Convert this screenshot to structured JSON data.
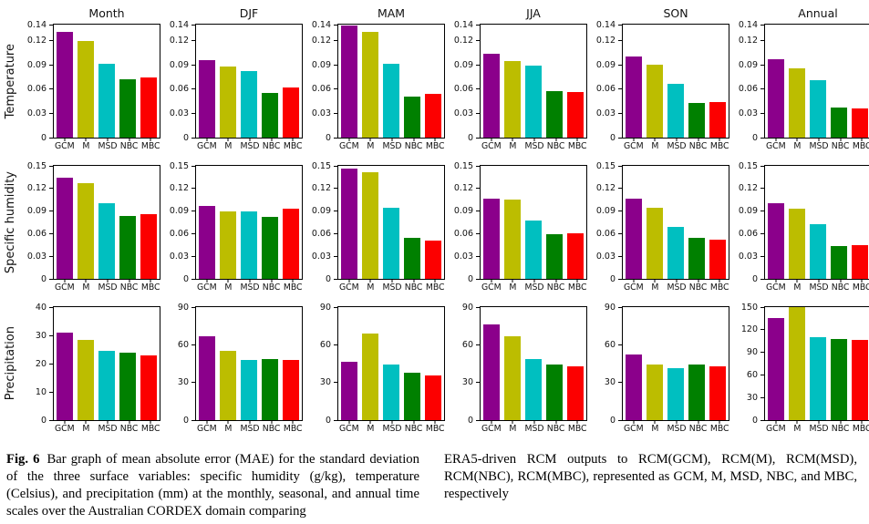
{
  "figure_caption": {
    "label": "Fig. 6",
    "left_text": "Bar graph of mean absolute error (MAE) for the standard deviation of the three surface variables: specific humidity (g/kg), temperature (Celsius), and precipitation (mm) at the monthly, seasonal, and annual time scales over the Australian CORDEX domain comparing",
    "right_text": "ERA5-driven RCM outputs to RCM(GCM), RCM(M), RCM(MSD), RCM(NBC), RCM(MBC), represented as GCM, M, MSD, NBC, and MBC, respectively"
  },
  "categories": [
    "GCM",
    "M",
    "MSD",
    "NBC",
    "MBC"
  ],
  "bar_colors": {
    "GCM": "#8b008b",
    "M": "#bcbd00",
    "MSD": "#00bfc0",
    "NBC": "#008000",
    "MBC": "#fc0000"
  },
  "row_labels": [
    "Temperature",
    "Specific humidity",
    "Precipitation"
  ],
  "col_titles": [
    "Month",
    "DJF",
    "MAM",
    "JJA",
    "SON",
    "Annual"
  ],
  "chart_data": [
    {
      "type": "bar",
      "title": "Month",
      "ylabel": "Temperature",
      "categories": [
        "GCM",
        "M",
        "MSD",
        "NBC",
        "MBC"
      ],
      "values": [
        0.131,
        0.12,
        0.091,
        0.072,
        0.075
      ],
      "ylim": [
        0,
        0.14
      ],
      "yticks": [
        0,
        0.03,
        0.06,
        0.09,
        0.12,
        0.14
      ],
      "xlabel": "",
      "grid": false
    },
    {
      "type": "bar",
      "title": "DJF",
      "ylabel": "Temperature",
      "categories": [
        "GCM",
        "M",
        "MSD",
        "NBC",
        "MBC"
      ],
      "values": [
        0.096,
        0.088,
        0.082,
        0.055,
        0.062
      ],
      "ylim": [
        0,
        0.14
      ],
      "yticks": [
        0,
        0.03,
        0.06,
        0.09,
        0.12,
        0.14
      ],
      "xlabel": "",
      "grid": false
    },
    {
      "type": "bar",
      "title": "MAM",
      "ylabel": "Temperature",
      "categories": [
        "GCM",
        "M",
        "MSD",
        "NBC",
        "MBC"
      ],
      "values": [
        0.139,
        0.131,
        0.091,
        0.051,
        0.054
      ],
      "ylim": [
        0,
        0.14
      ],
      "yticks": [
        0,
        0.03,
        0.06,
        0.09,
        0.12,
        0.14
      ],
      "xlabel": "",
      "grid": false
    },
    {
      "type": "bar",
      "title": "JJA",
      "ylabel": "Temperature",
      "categories": [
        "GCM",
        "M",
        "MSD",
        "NBC",
        "MBC"
      ],
      "values": [
        0.104,
        0.095,
        0.089,
        0.058,
        0.056
      ],
      "ylim": [
        0,
        0.14
      ],
      "yticks": [
        0,
        0.03,
        0.06,
        0.09,
        0.12,
        0.14
      ],
      "xlabel": "",
      "grid": false
    },
    {
      "type": "bar",
      "title": "SON",
      "ylabel": "Temperature",
      "categories": [
        "GCM",
        "M",
        "MSD",
        "NBC",
        "MBC"
      ],
      "values": [
        0.1,
        0.09,
        0.067,
        0.043,
        0.044
      ],
      "ylim": [
        0,
        0.14
      ],
      "yticks": [
        0,
        0.03,
        0.06,
        0.09,
        0.12,
        0.14
      ],
      "xlabel": "",
      "grid": false
    },
    {
      "type": "bar",
      "title": "Annual",
      "ylabel": "Temperature",
      "categories": [
        "GCM",
        "M",
        "MSD",
        "NBC",
        "MBC"
      ],
      "values": [
        0.097,
        0.086,
        0.071,
        0.037,
        0.036
      ],
      "ylim": [
        0,
        0.14
      ],
      "yticks": [
        0,
        0.03,
        0.06,
        0.09,
        0.12,
        0.14
      ],
      "xlabel": "",
      "grid": false
    },
    {
      "type": "bar",
      "title": "Month",
      "ylabel": "Specific humidity",
      "categories": [
        "GCM",
        "M",
        "MSD",
        "NBC",
        "MBC"
      ],
      "values": [
        0.134,
        0.127,
        0.101,
        0.084,
        0.086
      ],
      "ylim": [
        0,
        0.15
      ],
      "yticks": [
        0,
        0.03,
        0.06,
        0.09,
        0.12,
        0.15
      ],
      "xlabel": "",
      "grid": false
    },
    {
      "type": "bar",
      "title": "DJF",
      "ylabel": "Specific humidity",
      "categories": [
        "GCM",
        "M",
        "MSD",
        "NBC",
        "MBC"
      ],
      "values": [
        0.097,
        0.089,
        0.089,
        0.082,
        0.093
      ],
      "ylim": [
        0,
        0.15
      ],
      "yticks": [
        0,
        0.03,
        0.06,
        0.09,
        0.12,
        0.15
      ],
      "xlabel": "",
      "grid": false
    },
    {
      "type": "bar",
      "title": "MAM",
      "ylabel": "Specific humidity",
      "categories": [
        "GCM",
        "M",
        "MSD",
        "NBC",
        "MBC"
      ],
      "values": [
        0.146,
        0.141,
        0.094,
        0.054,
        0.051
      ],
      "ylim": [
        0,
        0.15
      ],
      "yticks": [
        0,
        0.03,
        0.06,
        0.09,
        0.12,
        0.15
      ],
      "xlabel": "",
      "grid": false
    },
    {
      "type": "bar",
      "title": "JJA",
      "ylabel": "Specific humidity",
      "categories": [
        "GCM",
        "M",
        "MSD",
        "NBC",
        "MBC"
      ],
      "values": [
        0.106,
        0.105,
        0.077,
        0.059,
        0.06
      ],
      "ylim": [
        0,
        0.15
      ],
      "yticks": [
        0,
        0.03,
        0.06,
        0.09,
        0.12,
        0.15
      ],
      "xlabel": "",
      "grid": false
    },
    {
      "type": "bar",
      "title": "SON",
      "ylabel": "Specific humidity",
      "categories": [
        "GCM",
        "M",
        "MSD",
        "NBC",
        "MBC"
      ],
      "values": [
        0.107,
        0.094,
        0.069,
        0.054,
        0.052
      ],
      "ylim": [
        0,
        0.15
      ],
      "yticks": [
        0,
        0.03,
        0.06,
        0.09,
        0.12,
        0.15
      ],
      "xlabel": "",
      "grid": false
    },
    {
      "type": "bar",
      "title": "Annual",
      "ylabel": "Specific humidity",
      "categories": [
        "GCM",
        "M",
        "MSD",
        "NBC",
        "MBC"
      ],
      "values": [
        0.1,
        0.093,
        0.073,
        0.043,
        0.045
      ],
      "ylim": [
        0,
        0.15
      ],
      "yticks": [
        0,
        0.03,
        0.06,
        0.09,
        0.12,
        0.15
      ],
      "xlabel": "",
      "grid": false
    },
    {
      "type": "bar",
      "title": "Month",
      "ylabel": "Precipitation",
      "categories": [
        "GCM",
        "M",
        "MSD",
        "NBC",
        "MBC"
      ],
      "values": [
        31,
        28.3,
        24.4,
        23.9,
        23
      ],
      "ylim": [
        0,
        40
      ],
      "yticks": [
        0,
        10,
        20,
        30,
        40
      ],
      "xlabel": "",
      "grid": false
    },
    {
      "type": "bar",
      "title": "DJF",
      "ylabel": "Precipitation",
      "categories": [
        "GCM",
        "M",
        "MSD",
        "NBC",
        "MBC"
      ],
      "values": [
        67,
        55.5,
        48,
        49,
        48
      ],
      "ylim": [
        0,
        90
      ],
      "yticks": [
        0,
        30,
        60,
        90
      ],
      "xlabel": "",
      "grid": false
    },
    {
      "type": "bar",
      "title": "MAM",
      "ylabel": "Precipitation",
      "categories": [
        "GCM",
        "M",
        "MSD",
        "NBC",
        "MBC"
      ],
      "values": [
        46.5,
        69,
        44.5,
        37.5,
        35.5
      ],
      "ylim": [
        0,
        90
      ],
      "yticks": [
        0,
        30,
        60,
        90
      ],
      "xlabel": "",
      "grid": false
    },
    {
      "type": "bar",
      "title": "JJA",
      "ylabel": "Precipitation",
      "categories": [
        "GCM",
        "M",
        "MSD",
        "NBC",
        "MBC"
      ],
      "values": [
        76,
        66.5,
        49,
        44,
        43
      ],
      "ylim": [
        0,
        90
      ],
      "yticks": [
        0,
        30,
        60,
        90
      ],
      "xlabel": "",
      "grid": false
    },
    {
      "type": "bar",
      "title": "SON",
      "ylabel": "Precipitation",
      "categories": [
        "GCM",
        "M",
        "MSD",
        "NBC",
        "MBC"
      ],
      "values": [
        52,
        44,
        41.5,
        44,
        42.5
      ],
      "ylim": [
        0,
        90
      ],
      "yticks": [
        0,
        30,
        60,
        90
      ],
      "xlabel": "",
      "grid": false
    },
    {
      "type": "bar",
      "title": "Annual",
      "ylabel": "Precipitation",
      "categories": [
        "GCM",
        "M",
        "MSD",
        "NBC",
        "MBC"
      ],
      "values": [
        136,
        150,
        110,
        108,
        107
      ],
      "ylim": [
        0,
        150
      ],
      "yticks": [
        0,
        30,
        60,
        90,
        120,
        150
      ],
      "xlabel": "",
      "grid": false
    }
  ]
}
